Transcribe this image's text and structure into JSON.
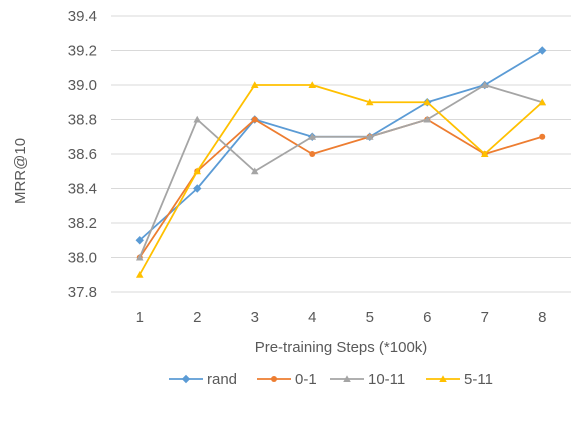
{
  "chart_data": {
    "type": "line",
    "title": "",
    "xlabel": "Pre-training Steps (*100k)",
    "ylabel": "MRR@10",
    "x": [
      1,
      2,
      3,
      4,
      5,
      6,
      7,
      8
    ],
    "x_tick_labels": [
      "1",
      "2",
      "3",
      "4",
      "5",
      "6",
      "7",
      "8"
    ],
    "ylim": [
      37.8,
      39.4
    ],
    "y_tick_labels": [
      "37.8",
      "38.0",
      "38.2",
      "38.4",
      "38.6",
      "38.8",
      "39.0",
      "39.2",
      "39.4"
    ],
    "grid": "horizontal",
    "legend_position": "bottom",
    "series": [
      {
        "name": "rand",
        "color": "#5B9BD5",
        "marker": "diamond",
        "values": [
          38.1,
          38.4,
          38.8,
          38.7,
          38.7,
          38.9,
          39.0,
          39.2
        ]
      },
      {
        "name": "0-1",
        "color": "#ED7D31",
        "marker": "circle",
        "values": [
          38.0,
          38.5,
          38.8,
          38.6,
          38.7,
          38.8,
          38.6,
          38.7
        ]
      },
      {
        "name": "10-11",
        "color": "#A5A5A5",
        "marker": "triangle",
        "values": [
          38.0,
          38.8,
          38.5,
          38.7,
          38.7,
          38.8,
          39.0,
          38.9
        ]
      },
      {
        "name": "5-11",
        "color": "#FFC000",
        "marker": "triangle",
        "values": [
          37.9,
          38.5,
          39.0,
          39.0,
          38.9,
          38.9,
          38.6,
          38.9
        ]
      }
    ]
  }
}
